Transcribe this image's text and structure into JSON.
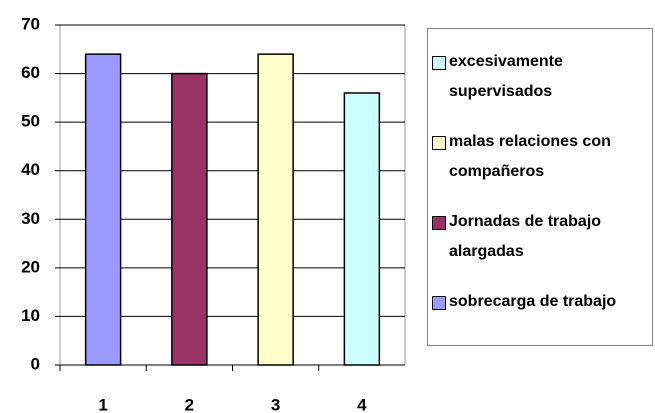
{
  "chart_data": {
    "type": "bar",
    "categories": [
      "1",
      "2",
      "3",
      "4"
    ],
    "series": [
      {
        "name": "sobrecarga de trabajo",
        "color": "#9999ff",
        "values": [
          64,
          null,
          null,
          null
        ]
      },
      {
        "name": "Jornadas de trabajo alargadas",
        "color": "#993366",
        "values": [
          null,
          60,
          null,
          null
        ]
      },
      {
        "name": "malas relaciones con compañeros",
        "color": "#ffffcc",
        "values": [
          null,
          null,
          64,
          null
        ]
      },
      {
        "name": "excesivamente supervisados",
        "color": "#ccffff",
        "values": [
          null,
          null,
          null,
          56
        ]
      }
    ],
    "ylim": [
      0,
      70
    ],
    "yticks": [
      0,
      10,
      20,
      30,
      40,
      50,
      60,
      70
    ],
    "grid": true,
    "legend": "right"
  }
}
